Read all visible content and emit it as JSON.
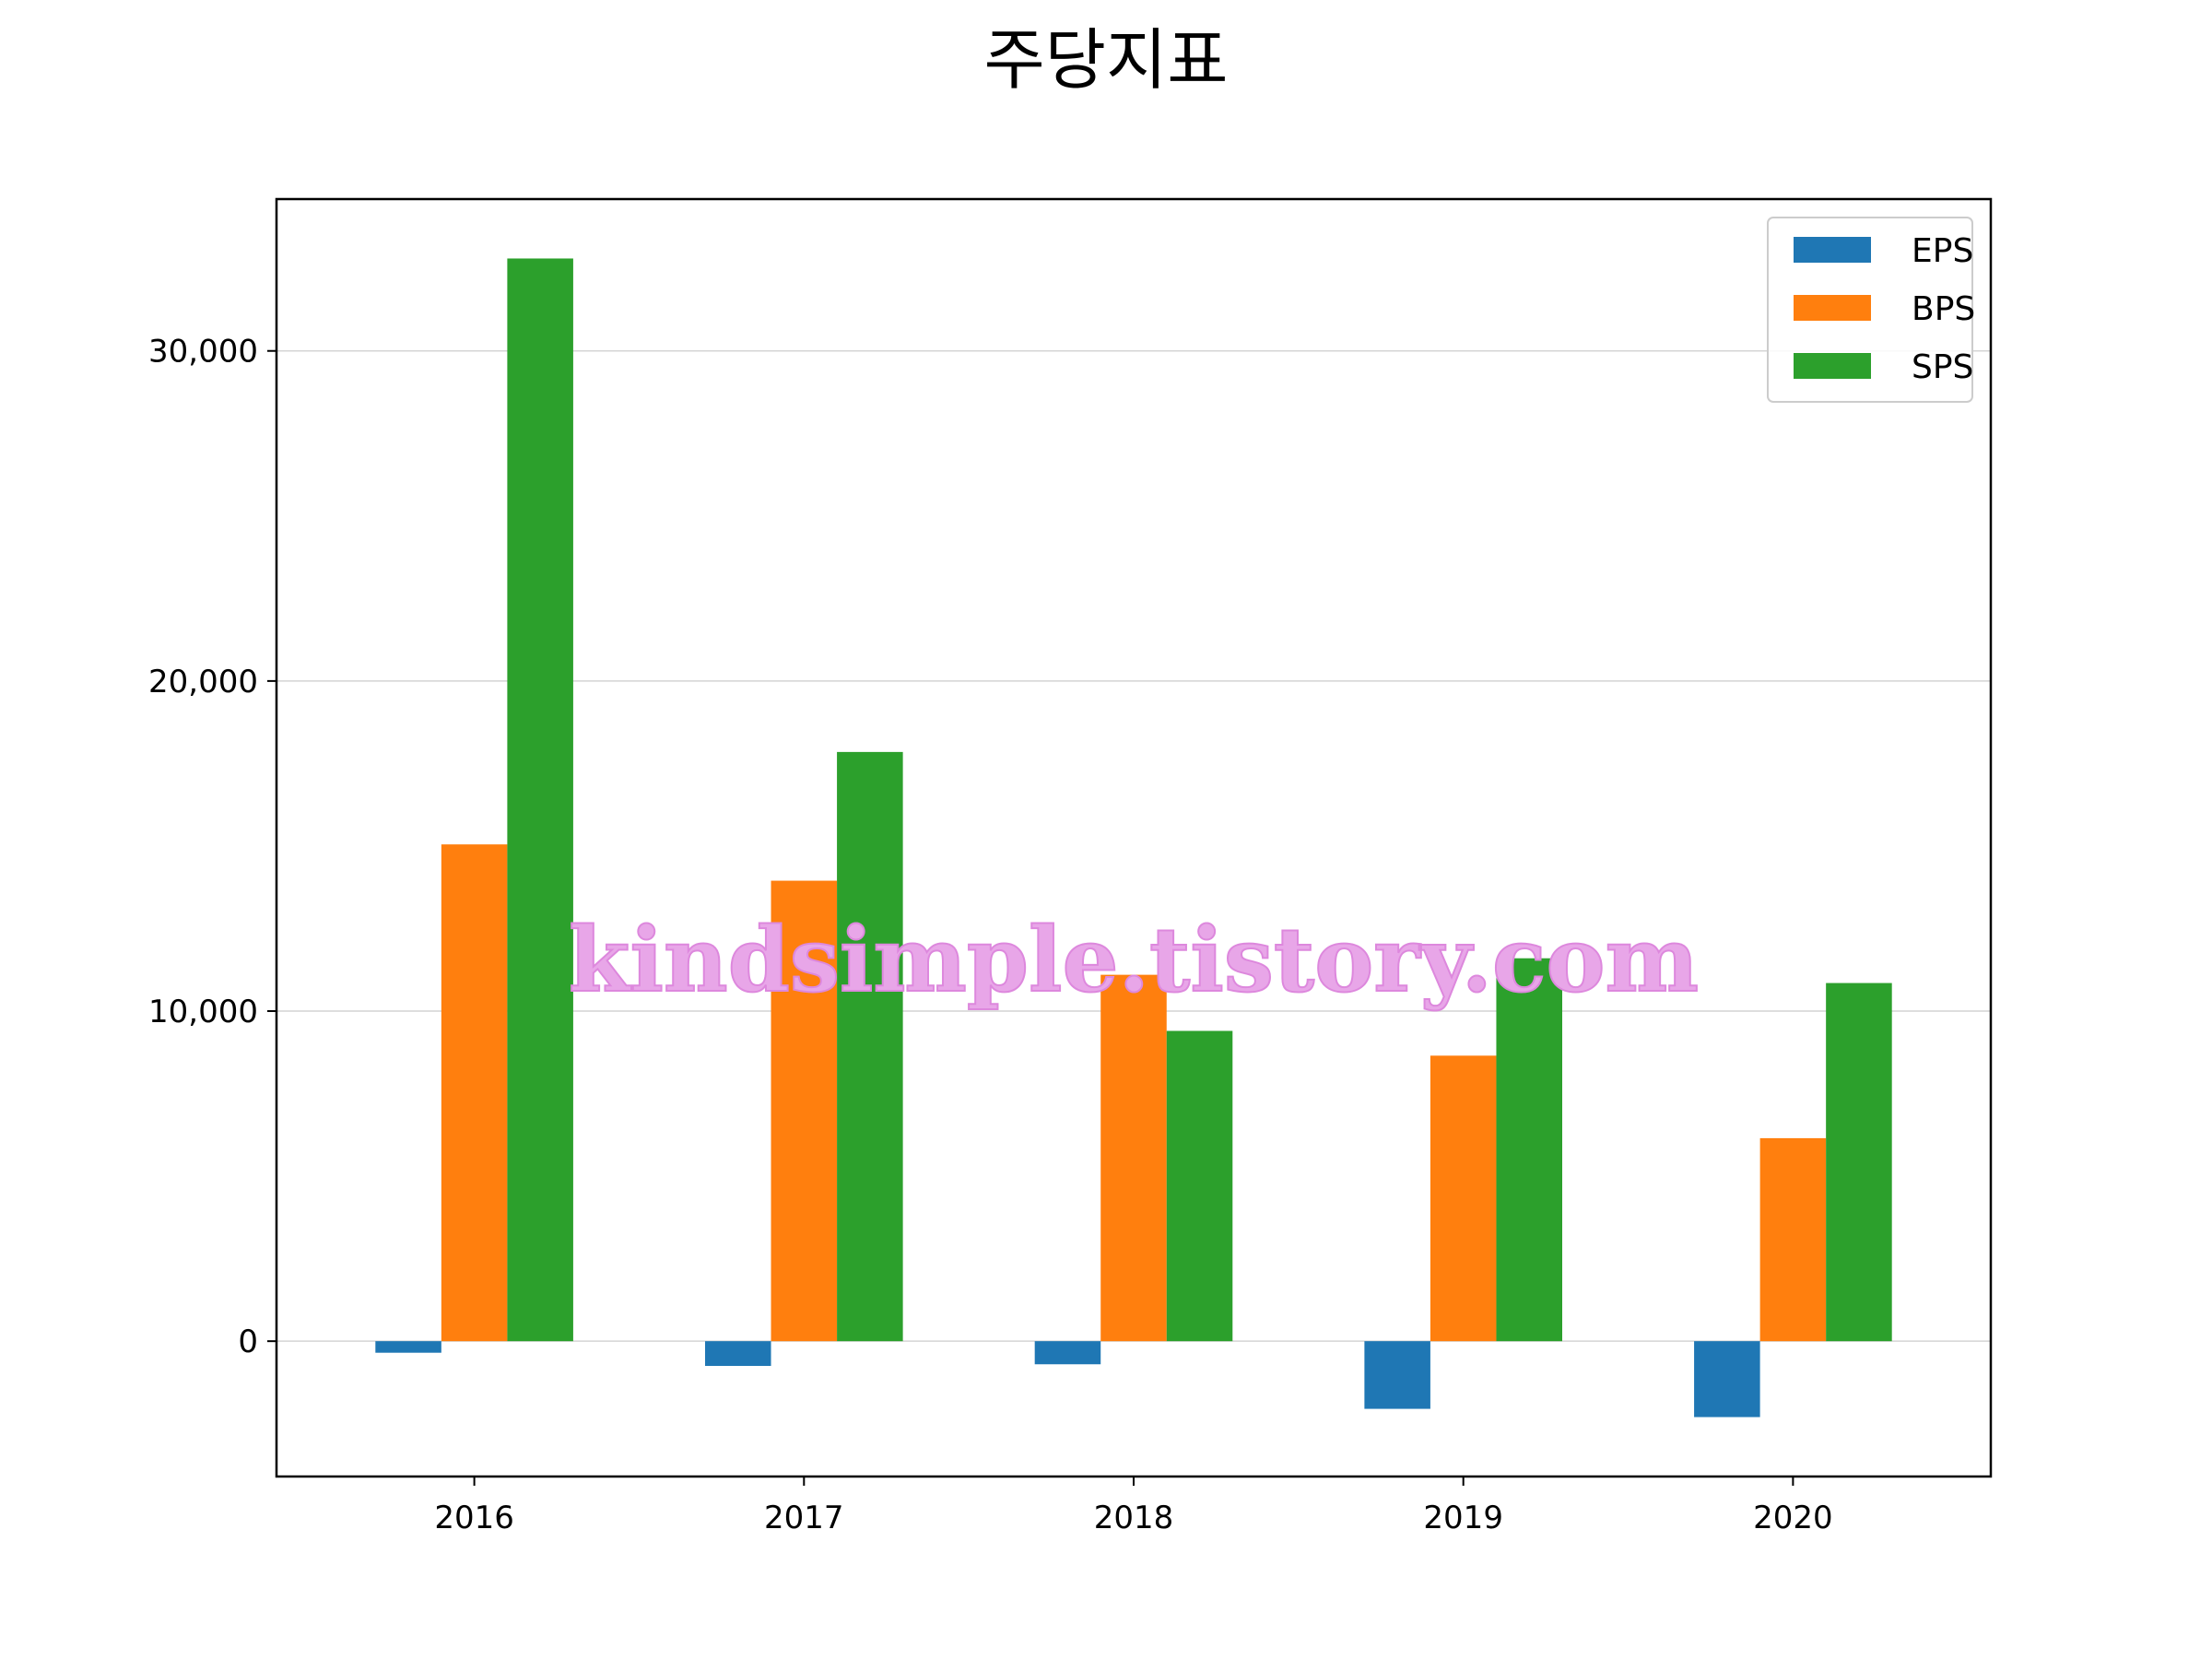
{
  "chart_data": {
    "type": "bar",
    "title": "주당지표",
    "categories": [
      "2016",
      "2017",
      "2018",
      "2019",
      "2020"
    ],
    "series": [
      {
        "name": "EPS",
        "color": "#1f77b4",
        "values": [
          -350,
          -750,
          -700,
          -2050,
          -2300
        ]
      },
      {
        "name": "BPS",
        "color": "#ff7f0e",
        "values": [
          15050,
          13950,
          11100,
          8650,
          6150
        ]
      },
      {
        "name": "SPS",
        "color": "#2ca02c",
        "values": [
          32800,
          17850,
          9400,
          11600,
          10850
        ]
      }
    ],
    "xlabel": "",
    "ylabel": "",
    "ylim": [
      -4100,
      34600
    ],
    "yticks": [
      0,
      10000,
      20000,
      30000
    ],
    "ytick_labels": [
      "0",
      "10,000",
      "20,000",
      "30,000"
    ],
    "grid": "y",
    "legend": "upper right"
  },
  "watermark": "kindsimple.tistory.com"
}
